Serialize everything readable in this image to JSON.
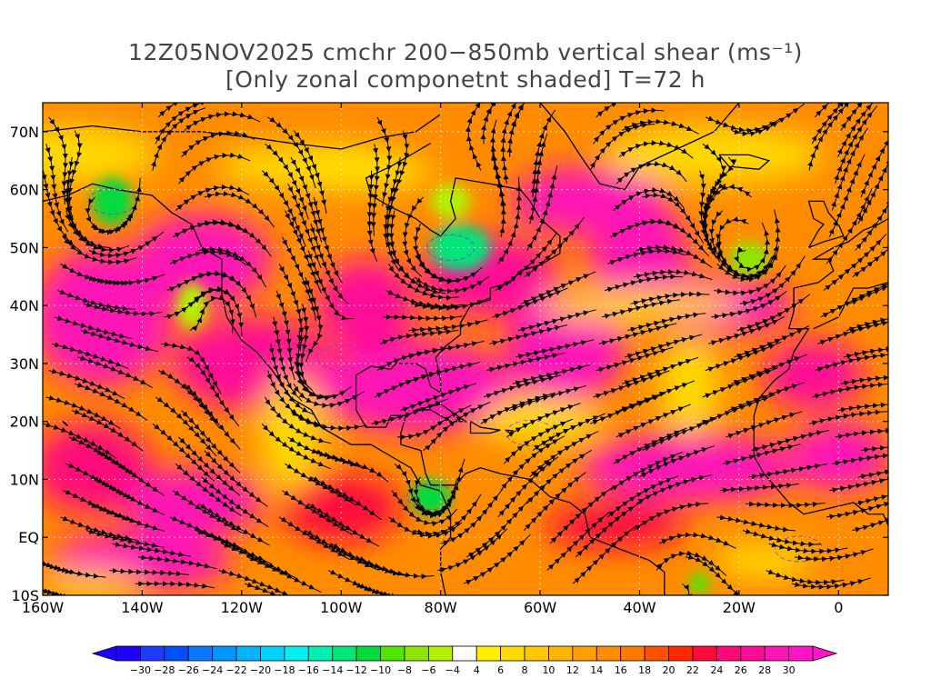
{
  "title": {
    "line1": "12Z05NOV2025 cmchr 200−850mb vertical shear (ms⁻¹)",
    "line2": "[Only zonal componetnt shaded] T=72 h"
  },
  "map": {
    "lon_range": [
      -160,
      10
    ],
    "lat_range": [
      -10,
      75
    ],
    "lat_ticks": [
      {
        "value": 70,
        "label": "70N"
      },
      {
        "value": 60,
        "label": "60N"
      },
      {
        "value": 50,
        "label": "50N"
      },
      {
        "value": 40,
        "label": "40N"
      },
      {
        "value": 30,
        "label": "30N"
      },
      {
        "value": 20,
        "label": "20N"
      },
      {
        "value": 10,
        "label": "10N"
      },
      {
        "value": 0,
        "label": "EQ"
      },
      {
        "value": -10,
        "label": "10S"
      }
    ],
    "lon_ticks": [
      {
        "value": -160,
        "label": "160W"
      },
      {
        "value": -140,
        "label": "140W"
      },
      {
        "value": -120,
        "label": "120W"
      },
      {
        "value": -100,
        "label": "100W"
      },
      {
        "value": -80,
        "label": "80W"
      },
      {
        "value": -60,
        "label": "60W"
      },
      {
        "value": -40,
        "label": "40W"
      },
      {
        "value": -20,
        "label": "20W"
      },
      {
        "value": 0,
        "label": "0"
      }
    ],
    "shear_regions": [
      {
        "lon": -148,
        "lat": 38,
        "rx": 14,
        "ry": 12,
        "level": 30
      },
      {
        "lon": -128,
        "lat": 48,
        "rx": 14,
        "ry": 8,
        "level": 30
      },
      {
        "lon": -118,
        "lat": 30,
        "rx": 16,
        "ry": 8,
        "level": 28
      },
      {
        "lon": -150,
        "lat": 12,
        "rx": 12,
        "ry": 8,
        "level": 26
      },
      {
        "lon": -130,
        "lat": 6,
        "rx": 14,
        "ry": 6,
        "level": 30
      },
      {
        "lon": -140,
        "lat": -4,
        "rx": 18,
        "ry": 5,
        "level": 30
      },
      {
        "lon": -100,
        "lat": 5,
        "rx": 12,
        "ry": 6,
        "level": 24
      },
      {
        "lon": -85,
        "lat": 26,
        "rx": 20,
        "ry": 8,
        "level": 30
      },
      {
        "lon": -70,
        "lat": 45,
        "rx": 14,
        "ry": 7,
        "level": 28
      },
      {
        "lon": -50,
        "lat": 58,
        "rx": 16,
        "ry": 6,
        "level": 30
      },
      {
        "lon": -40,
        "lat": 48,
        "rx": 10,
        "ry": 10,
        "level": 30
      },
      {
        "lon": -25,
        "lat": 40,
        "rx": 16,
        "ry": 5,
        "level": 30
      },
      {
        "lon": -55,
        "lat": 33,
        "rx": 12,
        "ry": 10,
        "level": 30
      },
      {
        "lon": -30,
        "lat": 12,
        "rx": 22,
        "ry": 6,
        "level": 30
      },
      {
        "lon": 0,
        "lat": 14,
        "rx": 10,
        "ry": 6,
        "level": 30
      },
      {
        "lon": -45,
        "lat": 2,
        "rx": 14,
        "ry": 4,
        "level": 24
      },
      {
        "lon": -5,
        "lat": 28,
        "rx": 10,
        "ry": 6,
        "level": 28
      },
      {
        "lon": -95,
        "lat": 40,
        "rx": 10,
        "ry": 8,
        "level": 28
      }
    ],
    "weak_regions": [
      {
        "lon": -146,
        "lat": 58,
        "rx": 4,
        "ry": 4,
        "level": -10
      },
      {
        "lon": -76,
        "lat": 50,
        "rx": 6,
        "ry": 4,
        "level": -12
      },
      {
        "lon": -82,
        "lat": 7,
        "rx": 4,
        "ry": 3,
        "level": -10
      },
      {
        "lon": -130,
        "lat": 40,
        "rx": 3,
        "ry": 4,
        "level": -4
      },
      {
        "lon": -78,
        "lat": 58,
        "rx": 4,
        "ry": 3,
        "level": -4
      },
      {
        "lon": -18,
        "lat": 48,
        "rx": 4,
        "ry": 3,
        "level": -6
      },
      {
        "lon": -28,
        "lat": -8,
        "rx": 2,
        "ry": 2,
        "level": -8
      }
    ]
  },
  "colorbar": {
    "levels": [
      -30,
      -28,
      -26,
      -24,
      -22,
      -20,
      -18,
      -16,
      -14,
      -12,
      -10,
      -8,
      -6,
      -4,
      4,
      6,
      8,
      10,
      12,
      14,
      16,
      18,
      20,
      22,
      24,
      26,
      28,
      30
    ],
    "labels": [
      "−30",
      "−28",
      "−26",
      "−24",
      "−22",
      "−20",
      "−18",
      "−16",
      "−14",
      "−12",
      "−10",
      "−8",
      "−6",
      "−4",
      "4",
      "6",
      "8",
      "10",
      "12",
      "14",
      "16",
      "18",
      "20",
      "22",
      "24",
      "26",
      "28",
      "30"
    ],
    "colors": [
      "#1e00ff",
      "#1e3cff",
      "#0050ff",
      "#0a78ff",
      "#0096ff",
      "#00b4ff",
      "#00d2ff",
      "#00f0f0",
      "#00f0b4",
      "#00e678",
      "#00dc3c",
      "#50e600",
      "#8ce600",
      "#b4f000",
      "#ffffff",
      "#fff000",
      "#ffdc00",
      "#ffc800",
      "#ffb400",
      "#ffa000",
      "#ff8c00",
      "#ff7800",
      "#ff5000",
      "#ff2800",
      "#ff0a3c",
      "#ff0a78",
      "#ff0a96",
      "#ff14b4",
      "#ff14c8"
    ]
  }
}
